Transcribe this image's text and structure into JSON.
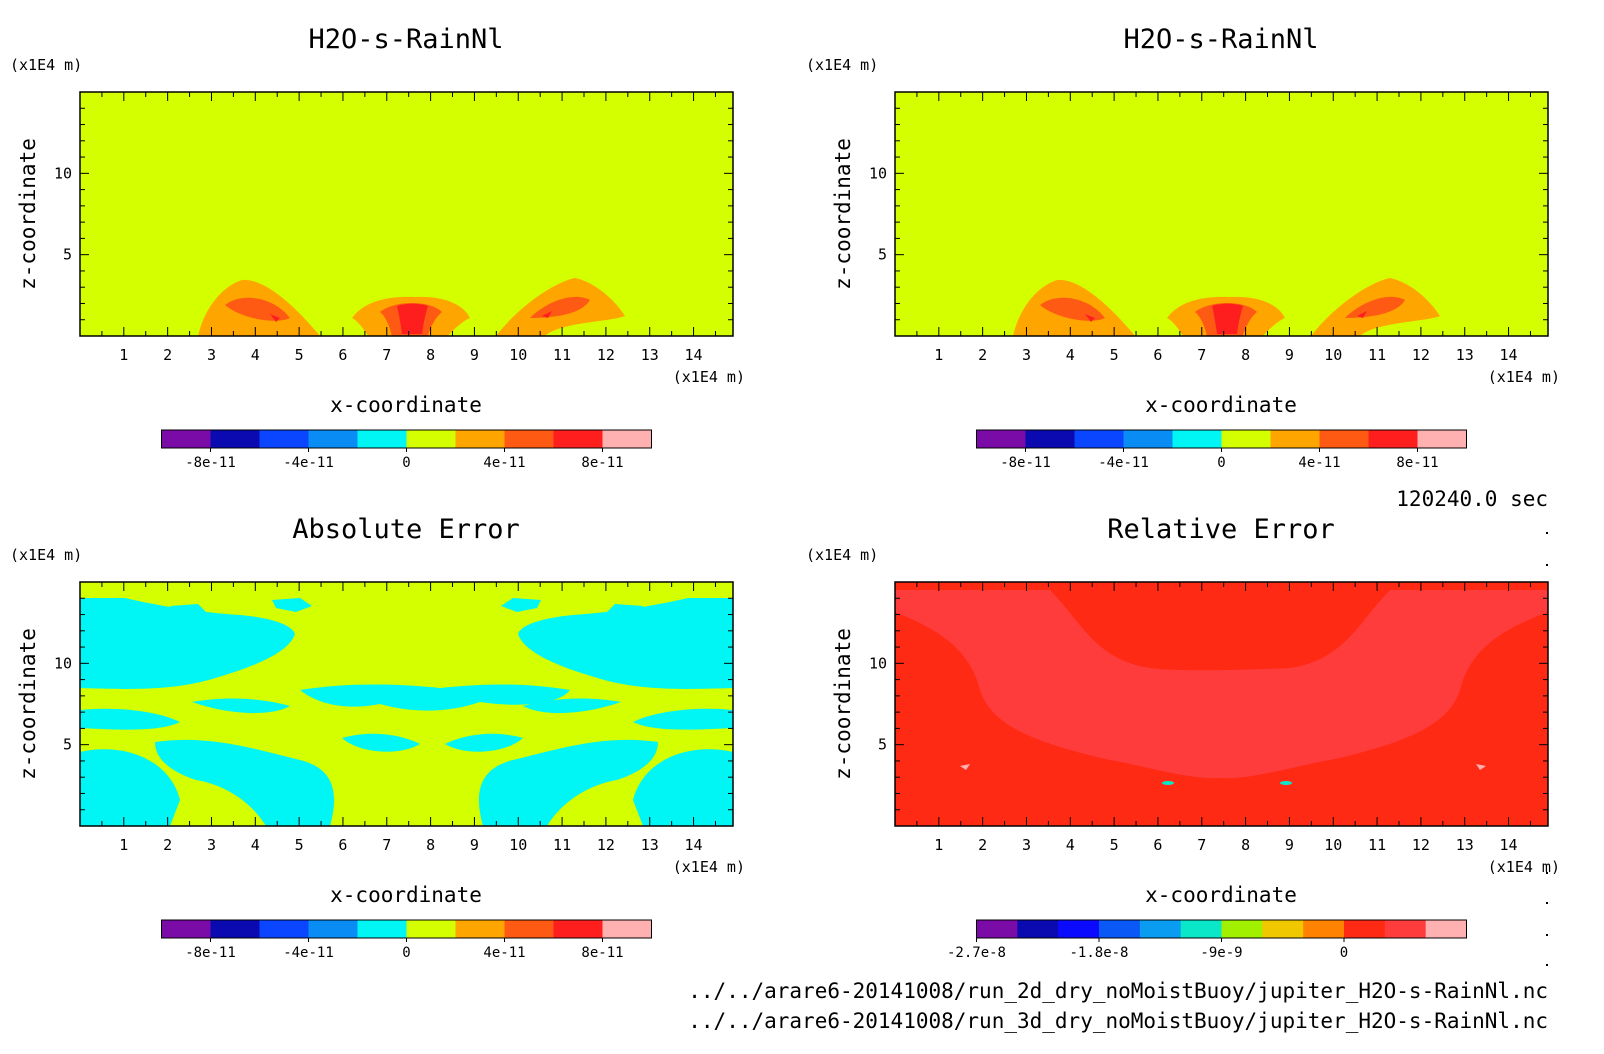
{
  "time_label": "120240.0 sec",
  "files": [
    "../../arare6-20141008/run_2d_dry_noMoistBuoy/jupiter_H2O-s-RainNl.nc",
    "../../arare6-20141008/run_3d_dry_noMoistBuoy/jupiter_H2O-s-RainNl.nc"
  ],
  "palettes": {
    "standard": [
      "#7a0ba6",
      "#0a0ab0",
      "#0a46ff",
      "#0a8cf5",
      "#00f5f5",
      "#d4ff00",
      "#ffa500",
      "#ff5a14",
      "#ff1e1e",
      "#ffb0b0"
    ],
    "relative": [
      "#7a0ba6",
      "#0a0ab0",
      "#0a0aff",
      "#0a58f5",
      "#0a9cf0",
      "#0ae6c8",
      "#a0f000",
      "#f0c800",
      "#ff8200",
      "#ff2a14",
      "#ff3c3c",
      "#ffb0b0"
    ]
  },
  "chart_data": [
    {
      "type": "heatmap",
      "title": "H2O-s-RainNl",
      "xlabel": "x-coordinate",
      "ylabel": "z-coordinate",
      "x_unit": "(x1E4 m)",
      "y_unit": "(x1E4 m)",
      "xlim": [
        0,
        14.9
      ],
      "ylim": [
        0,
        15
      ],
      "xticks": [
        "1",
        "2",
        "3",
        "4",
        "5",
        "6",
        "7",
        "8",
        "9",
        "10",
        "11",
        "12",
        "13",
        "14"
      ],
      "yticks": [
        "5",
        "10"
      ],
      "colorbar": {
        "palette": "standard",
        "ticks": [
          "-8e-11",
          "-4e-11",
          "0",
          "4e-11",
          "8e-11"
        ]
      },
      "background_level": "0",
      "features": [
        {
          "level": "4e-11",
          "x": 3.6,
          "z": 1.5
        },
        {
          "level": "6e-11",
          "x": 3.9,
          "z": 1.6
        },
        {
          "level": "4e-11",
          "x": 7.5,
          "z": 1.2
        },
        {
          "level": "6e-11",
          "x": 7.5,
          "z": 1.3
        },
        {
          "level": "8e-11",
          "x": 7.5,
          "z": 1.0
        },
        {
          "level": "4e-11",
          "x": 11.5,
          "z": 1.5
        },
        {
          "level": "6e-11",
          "x": 11.2,
          "z": 1.6
        }
      ]
    },
    {
      "type": "heatmap",
      "title": "H2O-s-RainNl",
      "xlabel": "x-coordinate",
      "ylabel": "z-coordinate",
      "x_unit": "(x1E4 m)",
      "y_unit": "(x1E4 m)",
      "xlim": [
        0,
        14.9
      ],
      "ylim": [
        0,
        15
      ],
      "xticks": [
        "1",
        "2",
        "3",
        "4",
        "5",
        "6",
        "7",
        "8",
        "9",
        "10",
        "11",
        "12",
        "13",
        "14"
      ],
      "yticks": [
        "5",
        "10"
      ],
      "colorbar": {
        "palette": "standard",
        "ticks": [
          "-8e-11",
          "-4e-11",
          "0",
          "4e-11",
          "8e-11"
        ]
      },
      "background_level": "0",
      "features": [
        {
          "level": "4e-11",
          "x": 3.6,
          "z": 1.5
        },
        {
          "level": "6e-11",
          "x": 3.9,
          "z": 1.6
        },
        {
          "level": "4e-11",
          "x": 7.5,
          "z": 1.2
        },
        {
          "level": "6e-11",
          "x": 7.5,
          "z": 1.3
        },
        {
          "level": "8e-11",
          "x": 7.5,
          "z": 1.0
        },
        {
          "level": "4e-11",
          "x": 11.5,
          "z": 1.5
        },
        {
          "level": "6e-11",
          "x": 11.2,
          "z": 1.6
        }
      ]
    },
    {
      "type": "heatmap",
      "title": "Absolute Error",
      "xlabel": "x-coordinate",
      "ylabel": "z-coordinate",
      "x_unit": "(x1E4 m)",
      "y_unit": "(x1E4 m)",
      "xlim": [
        0,
        14.9
      ],
      "ylim": [
        0,
        15
      ],
      "xticks": [
        "1",
        "2",
        "3",
        "4",
        "5",
        "6",
        "7",
        "8",
        "9",
        "10",
        "11",
        "12",
        "13",
        "14"
      ],
      "yticks": [
        "5",
        "10"
      ],
      "colorbar": {
        "palette": "standard",
        "ticks": [
          "-8e-11",
          "-4e-11",
          "0",
          "4e-11",
          "8e-11"
        ]
      },
      "background_level": "0",
      "features": [
        {
          "level": "-1e-11",
          "x": 1.0,
          "z": 9.0
        },
        {
          "level": "-1e-11",
          "x": 1.5,
          "z": 4.0
        },
        {
          "level": "-1e-11",
          "x": 3.0,
          "z": 12.0
        },
        {
          "level": "-1e-11",
          "x": 5.0,
          "z": 3.0
        },
        {
          "level": "-1e-11",
          "x": 10.0,
          "z": 3.0
        },
        {
          "level": "-1e-11",
          "x": 12.0,
          "z": 12.0
        },
        {
          "level": "-1e-11",
          "x": 13.5,
          "z": 4.0
        },
        {
          "level": "-1e-11",
          "x": 14.0,
          "z": 9.0
        }
      ]
    },
    {
      "type": "heatmap",
      "title": "Relative Error",
      "xlabel": "x-coordinate",
      "ylabel": "z-coordinate",
      "x_unit": "(x1E4 m)",
      "y_unit": "(x1E4 m)",
      "xlim": [
        0,
        14.9
      ],
      "ylim": [
        0,
        15
      ],
      "xticks": [
        "1",
        "2",
        "3",
        "4",
        "5",
        "6",
        "7",
        "8",
        "9",
        "10",
        "11",
        "12",
        "13",
        "14"
      ],
      "yticks": [
        "5",
        "10"
      ],
      "colorbar": {
        "palette": "relative",
        "ticks": [
          "-2.7e-8",
          "-1.8e-8",
          "-9e-9",
          "0"
        ]
      },
      "background_level": "0",
      "features": [
        {
          "level": "-2.25e-9",
          "x": 7.5,
          "z": 9.0
        },
        {
          "level": "-2.25e-9",
          "x": 3.0,
          "z": 9.0
        },
        {
          "level": "-2.25e-9",
          "x": 12.0,
          "z": 9.0
        },
        {
          "level": "-4.5e-9",
          "x": 1.5,
          "z": 4.0
        },
        {
          "level": "-4.5e-9",
          "x": 13.5,
          "z": 4.0
        },
        {
          "level": "-1.35e-8",
          "x": 6.2,
          "z": 2.8
        },
        {
          "level": "-1.35e-8",
          "x": 8.9,
          "z": 2.8
        }
      ]
    }
  ]
}
